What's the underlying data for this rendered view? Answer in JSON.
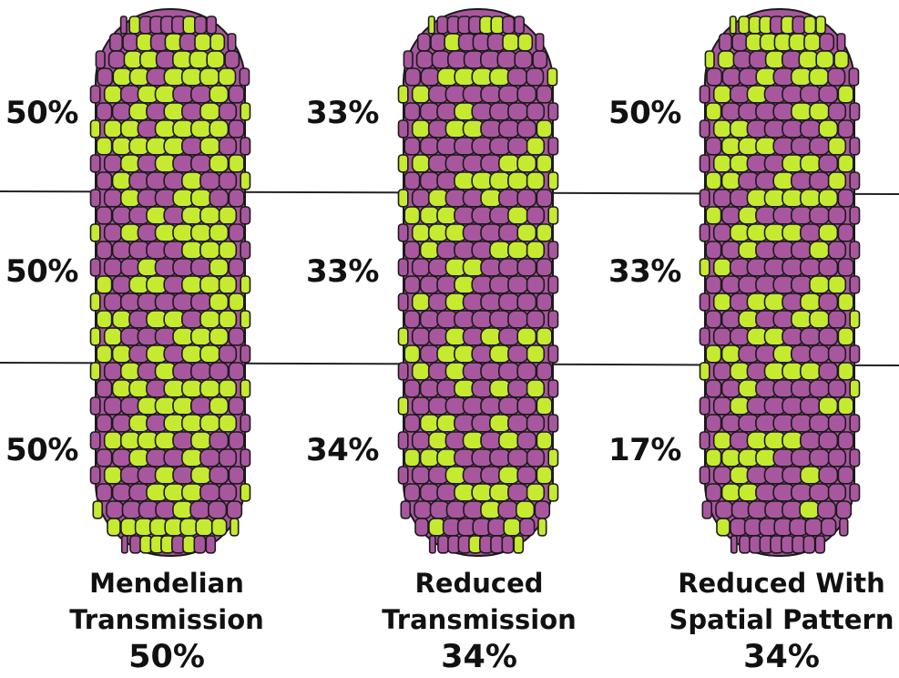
{
  "colors": {
    "kernel_purple": "#a8579e",
    "kernel_yellow": "#c6ea30",
    "outline": "#1a1a1a",
    "divider": "#222222"
  },
  "panels": [
    {
      "band_labels": [
        "50%",
        "50%",
        "50%"
      ],
      "caption_lines": [
        "Mendelian",
        "Transmission"
      ],
      "total": "50%",
      "yellow_fraction_by_band": [
        0.5,
        0.5,
        0.5
      ]
    },
    {
      "band_labels": [
        "33%",
        "33%",
        "34%"
      ],
      "caption_lines": [
        "Reduced",
        "Transmission"
      ],
      "total": "34%",
      "yellow_fraction_by_band": [
        0.33,
        0.33,
        0.34
      ]
    },
    {
      "band_labels": [
        "50%",
        "33%",
        "17%"
      ],
      "caption_lines": [
        "Reduced With",
        "Spatial Pattern"
      ],
      "total": "34%",
      "yellow_fraction_by_band": [
        0.5,
        0.33,
        0.17
      ]
    }
  ]
}
